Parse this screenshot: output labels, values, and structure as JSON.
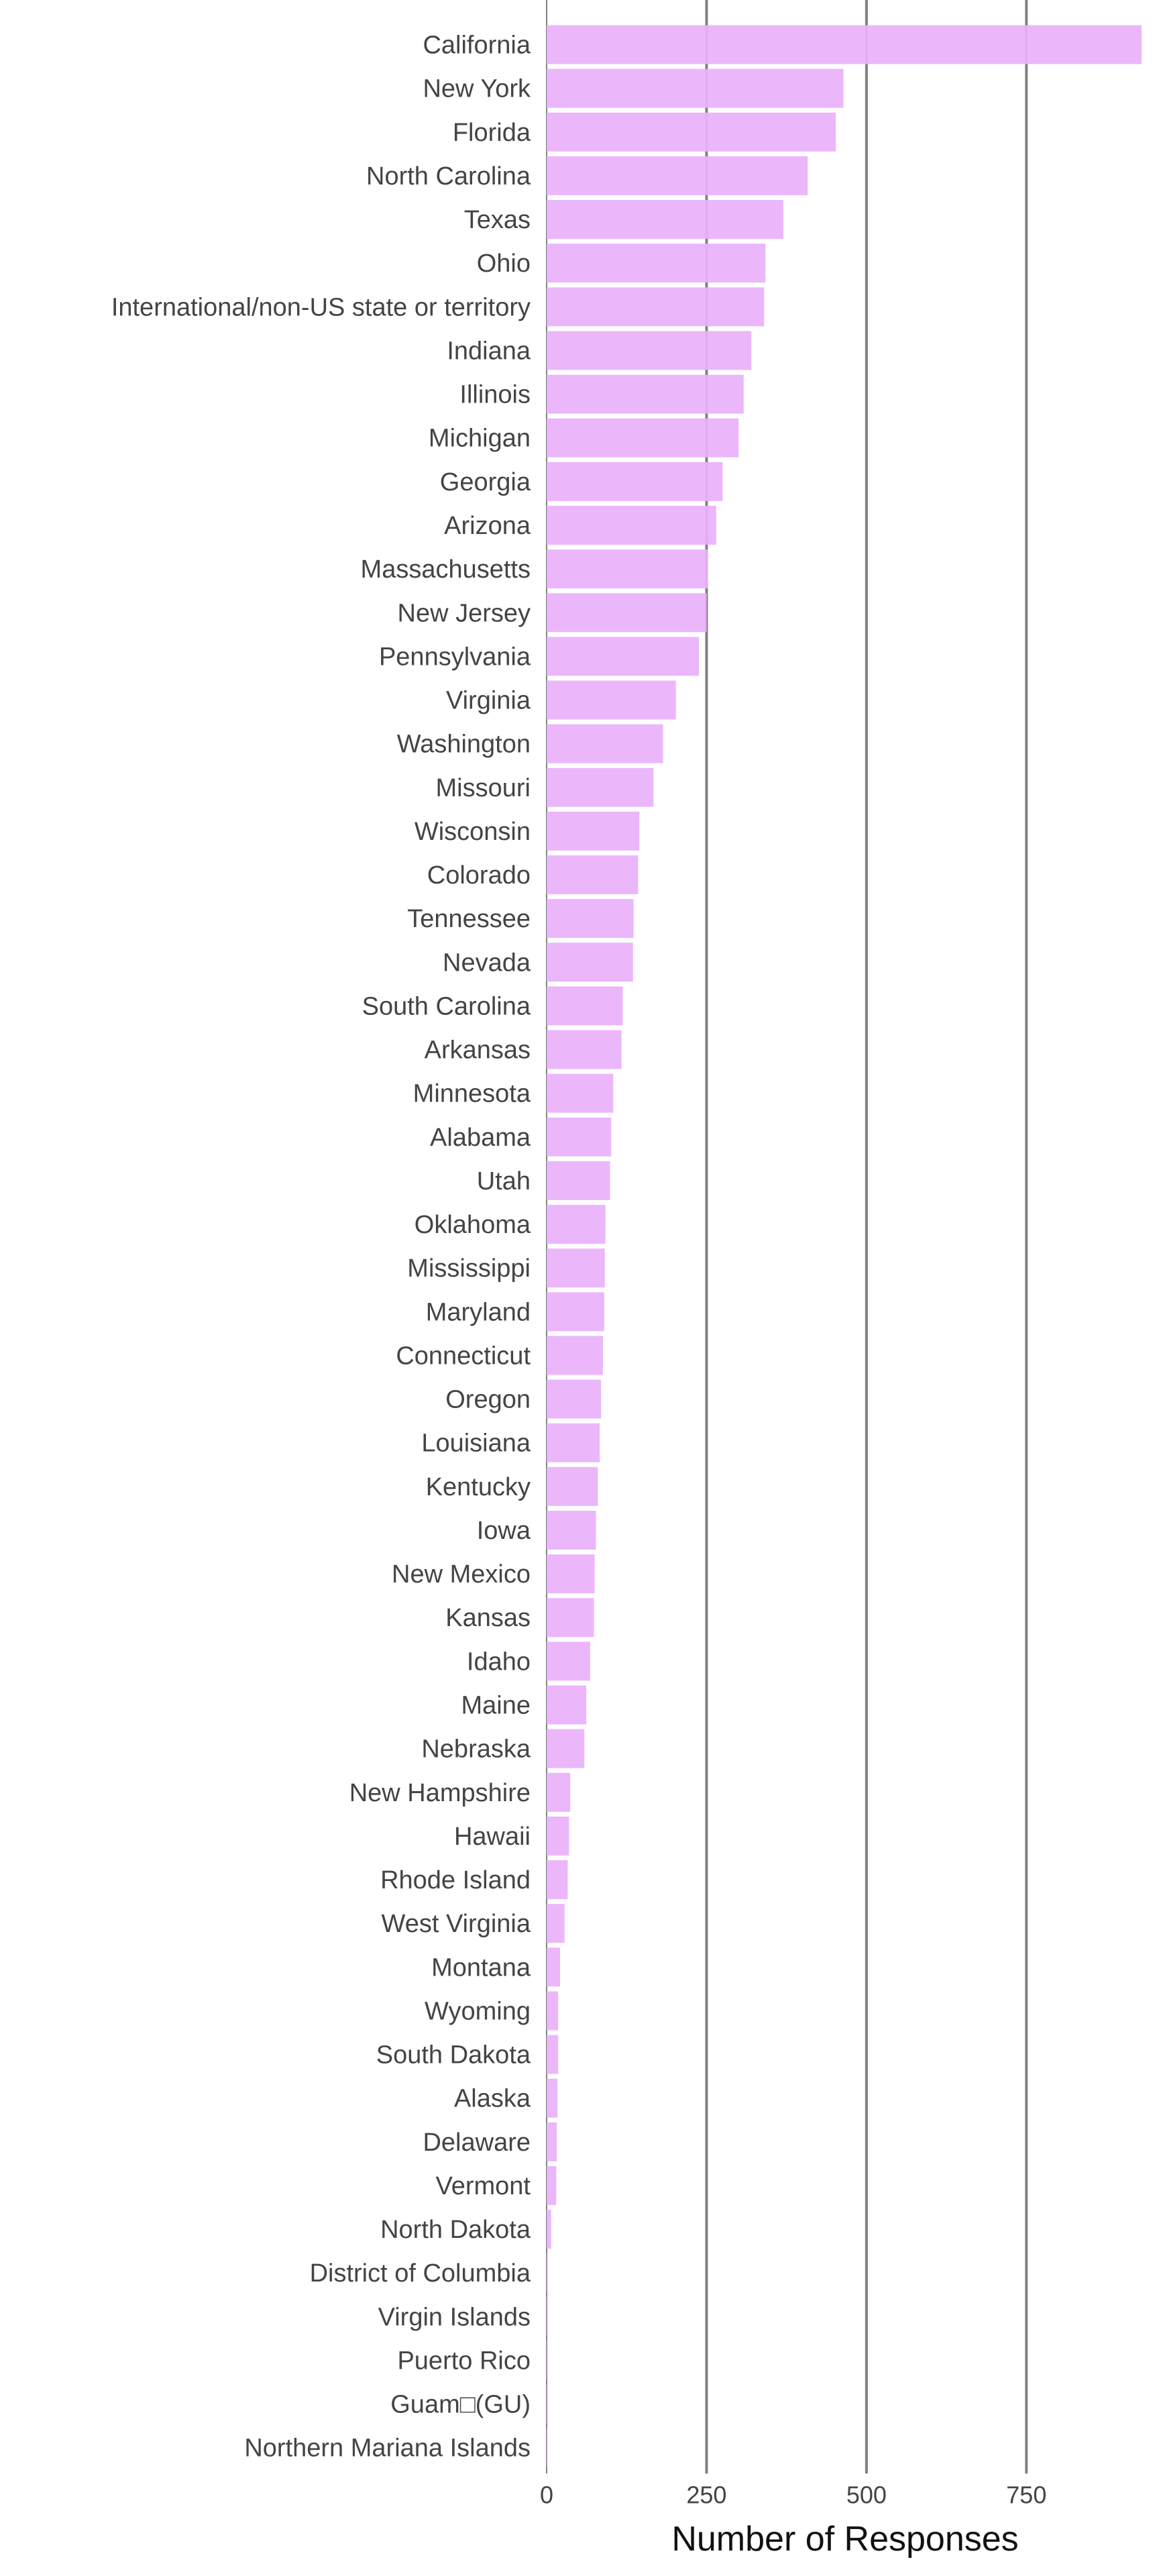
{
  "chart_data": {
    "type": "bar",
    "orientation": "horizontal",
    "title": "",
    "xlabel": "Number of Responses",
    "ylabel": "",
    "xlim": [
      0,
      930
    ],
    "xticks": [
      0,
      250,
      500,
      750
    ],
    "grid": "vertical lines at x ticks",
    "bar_color": "#eab2fa",
    "gridline_color": "#808080",
    "categories": [
      "California",
      "New York",
      "Florida",
      "North Carolina",
      "Texas",
      "Ohio",
      "International/non-US state or territory",
      "Indiana",
      "Illinois",
      "Michigan",
      "Georgia",
      "Arizona",
      "Massachusetts",
      "New Jersey",
      "Pennsylvania",
      "Virginia",
      "Washington",
      "Missouri",
      "Wisconsin",
      "Colorado",
      "Tennessee",
      "Nevada",
      "South Carolina",
      "Arkansas",
      "Minnesota",
      "Alabama",
      "Utah",
      "Oklahoma",
      "Mississippi",
      "Maryland",
      "Connecticut",
      "Oregon",
      "Louisiana",
      "Kentucky",
      "Iowa",
      "New Mexico",
      "Kansas",
      "Idaho",
      "Maine",
      "Nebraska",
      "New Hampshire",
      "Hawaii",
      "Rhode Island",
      "West Virginia",
      "Montana",
      "Wyoming",
      "South Dakota",
      "Alaska",
      "Delaware",
      "Vermont",
      "North Dakota",
      "District of Columbia",
      "Virgin Islands",
      "Puerto Rico",
      "Guam□(GU)",
      "Northern Mariana Islands"
    ],
    "values": [
      930,
      464,
      452,
      408,
      370,
      342,
      340,
      320,
      308,
      300,
      275,
      265,
      252,
      250,
      238,
      202,
      182,
      167,
      145,
      143,
      136,
      135,
      119,
      117,
      104,
      101,
      99,
      92,
      91,
      90,
      88,
      85,
      83,
      80,
      77,
      75,
      74,
      68,
      62,
      59,
      37,
      35,
      33,
      28,
      21,
      18,
      18,
      17,
      16,
      15,
      7,
      2,
      2,
      2,
      2,
      1
    ]
  }
}
